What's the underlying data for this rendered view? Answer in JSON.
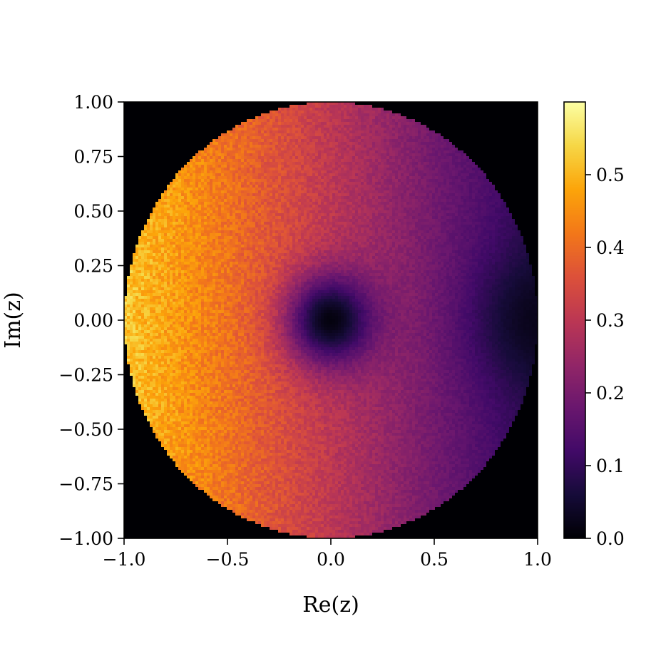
{
  "chart_data": {
    "type": "heatmap",
    "title": "",
    "xlabel": "Re(z)",
    "ylabel": "Im(z)",
    "xlim": [
      -1.0,
      1.0
    ],
    "ylim": [
      -1.0,
      1.0
    ],
    "x_ticks": [
      -1.0,
      -0.5,
      0.0,
      0.5,
      1.0
    ],
    "x_tick_labels": [
      "−1.0",
      "−0.5",
      "0.0",
      "0.5",
      "1.0"
    ],
    "y_ticks": [
      1.0,
      0.75,
      0.5,
      0.25,
      0.0,
      -0.25,
      -0.5,
      -0.75,
      -1.0
    ],
    "y_tick_labels": [
      "1.00",
      "0.75",
      "0.50",
      "0.25",
      "0.00",
      "−0.25",
      "−0.50",
      "−0.75",
      "−1.00"
    ],
    "colorbar": {
      "range": [
        0.0,
        0.6
      ],
      "ticks": [
        0.0,
        0.1,
        0.2,
        0.3,
        0.4,
        0.5
      ],
      "tick_labels": [
        "0.0",
        "0.1",
        "0.2",
        "0.3",
        "0.4",
        "0.5"
      ],
      "colormap": "inferno"
    },
    "support": "unit disk |z| ≤ 1",
    "outside_value": 0.0,
    "features": [
      {
        "kind": "minimum",
        "re": 0.0,
        "im": 0.0,
        "value": 0.0
      },
      {
        "kind": "minimum",
        "re": 1.0,
        "im": 0.0,
        "value": 0.03
      },
      {
        "kind": "maximum",
        "re": -1.0,
        "im": 0.0,
        "value": 0.52
      }
    ]
  }
}
